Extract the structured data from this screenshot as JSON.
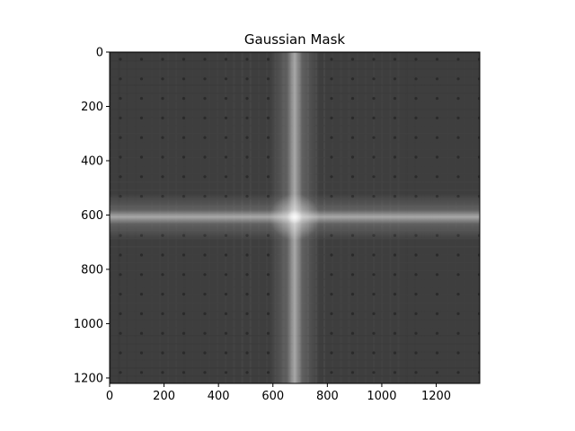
{
  "chart_data": {
    "type": "heatmap",
    "title": "Gaussian Mask",
    "colormap": "gray",
    "image_width": 1360,
    "image_height": 1220,
    "xlim": [
      0,
      1360
    ],
    "ylim": [
      1220,
      0
    ],
    "xticks": [
      0,
      200,
      400,
      600,
      800,
      1000,
      1200
    ],
    "yticks": [
      0,
      200,
      400,
      600,
      800,
      1000,
      1200
    ],
    "center": {
      "x": 680,
      "y": 607
    },
    "grid": false
  }
}
